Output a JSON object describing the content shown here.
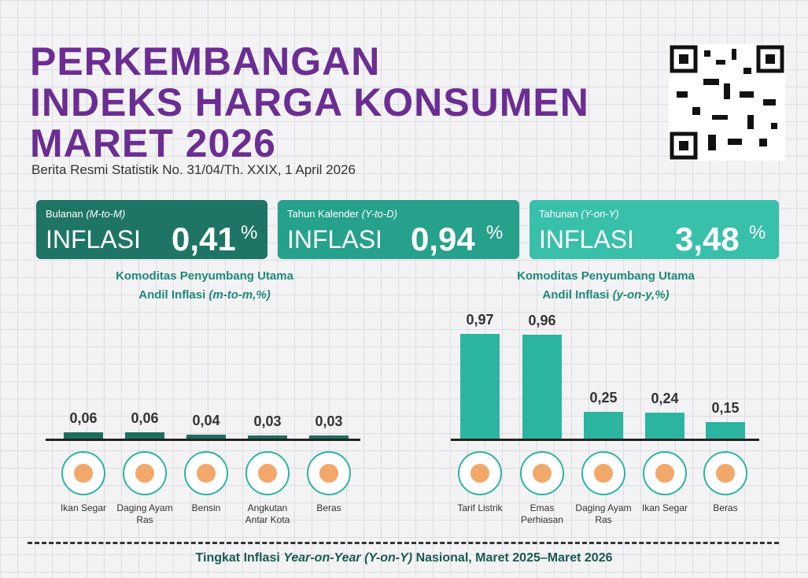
{
  "header": {
    "title": [
      "PERKEMBANGAN",
      "INDEKS HARGA KONSUMEN",
      "MARET 2026"
    ],
    "subtitle": "Berita Resmi Statistik No. 31/04/Th. XXIX, 1 April 2026"
  },
  "cards": [
    {
      "period": "Bulanan",
      "period_code": "(M-to-M)",
      "label": "INFLASI",
      "value": "0,41",
      "unit": "%",
      "color": "#1e7565"
    },
    {
      "period": "Tahun Kalender",
      "period_code": "(Y-to-D)",
      "label": "INFLASI",
      "value": "0,94",
      "unit": "%",
      "color": "#25a18c"
    },
    {
      "period": "Tahunan",
      "period_code": "(Y-on-Y)",
      "label": "INFLASI",
      "value": "3,48",
      "unit": "%",
      "color": "#38c0ab"
    }
  ],
  "chart_data": [
    {
      "type": "bar",
      "title": [
        "Komoditas Penyumbang Utama",
        "Andil Inflasi",
        "(m-to-m,%)"
      ],
      "categories": [
        "Ikan Segar",
        "Daging Ayam Ras",
        "Bensin",
        "Angkutan Antar Kota",
        "Beras"
      ],
      "values": [
        0.06,
        0.06,
        0.04,
        0.03,
        0.03
      ],
      "value_labels": [
        "0,06",
        "0,06",
        "0,04",
        "0,03",
        "0,03"
      ],
      "color": "#1e6e5e"
    },
    {
      "type": "bar",
      "title": [
        "Komoditas Penyumbang Utama",
        "Andil Inflasi",
        "(y-on-y,%)"
      ],
      "categories": [
        "Tarif Listrik",
        "Emas Perhiasan",
        "Daging Ayam Ras",
        "Ikan Segar",
        "Beras"
      ],
      "values": [
        0.97,
        0.96,
        0.25,
        0.24,
        0.15
      ],
      "value_labels": [
        "0,97",
        "0,96",
        "0,25",
        "0,24",
        "0,15"
      ],
      "color": "#2bb5a0"
    }
  ],
  "footer": {
    "parts": [
      "Tingkat Inflasi ",
      "Year-on-Year (Y-on-Y)",
      " Nasional, Maret 2025–Maret 2026"
    ]
  }
}
